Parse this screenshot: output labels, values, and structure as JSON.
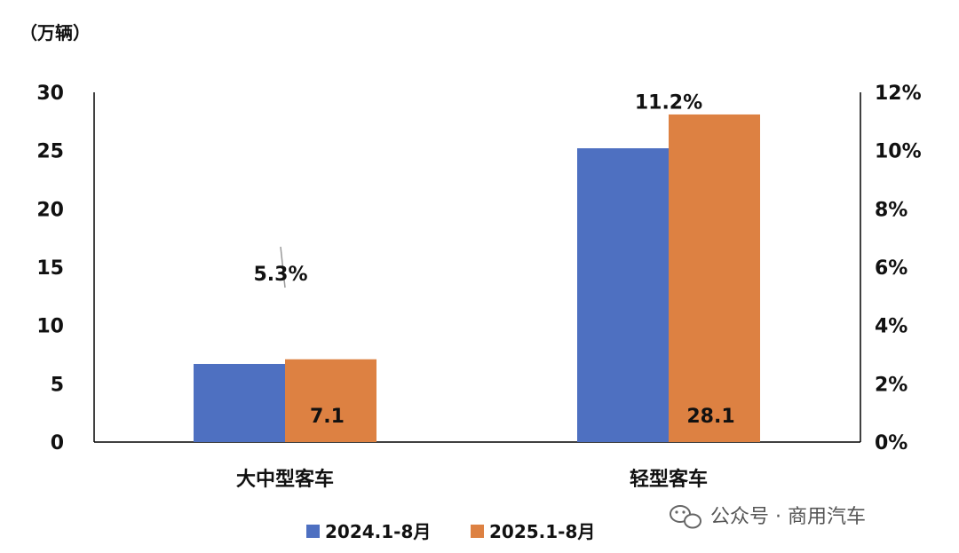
{
  "chart_data": {
    "type": "bar",
    "unit_label": "（万辆）",
    "categories": [
      "大中型客车",
      "轻型客车"
    ],
    "series": [
      {
        "name": "2024.1-8月",
        "values": [
          6.7,
          25.2
        ],
        "color": "#4E70C1"
      },
      {
        "name": "2025.1-8月",
        "values": [
          7.1,
          28.1
        ],
        "color": "#DD8142",
        "value_labels": [
          "7.1",
          "28.1"
        ]
      }
    ],
    "growth": {
      "values": [
        5.3,
        11.2
      ],
      "labels": [
        "5.3%",
        "11.2%"
      ]
    },
    "y_left": {
      "min": 0,
      "max": 30,
      "ticks": [
        "0",
        "5",
        "10",
        "15",
        "20",
        "25",
        "30"
      ]
    },
    "y_right": {
      "min": 0,
      "max": 12,
      "ticks": [
        "0%",
        "2%",
        "4%",
        "6%",
        "8%",
        "10%",
        "12%"
      ]
    },
    "grid": false,
    "legend": {
      "position": "bottom"
    }
  },
  "watermark": {
    "text": "公众号 · 商用汽车",
    "icon": "wechat-icon"
  }
}
